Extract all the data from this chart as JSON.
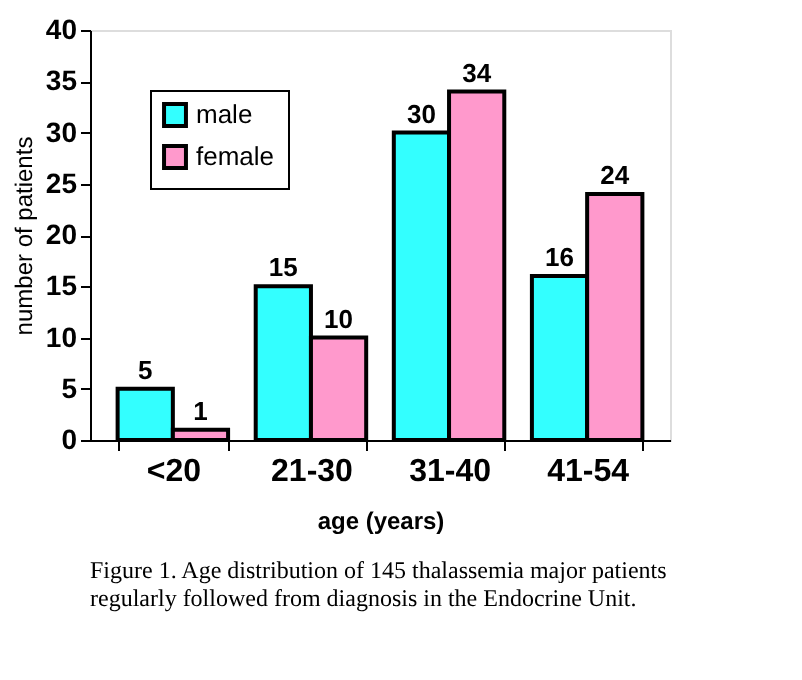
{
  "chart_data": {
    "type": "bar",
    "categories": [
      "<20",
      "21-30",
      "31-40",
      "41-54"
    ],
    "series": [
      {
        "name": "male",
        "color": "#33ffff",
        "values": [
          5,
          15,
          30,
          16
        ]
      },
      {
        "name": "female",
        "color": "#ff99cc",
        "values": [
          1,
          10,
          34,
          24
        ]
      }
    ],
    "xlabel": "age (years)",
    "ylabel": "number of patients",
    "ylim": [
      0,
      40
    ],
    "yticks": [
      0,
      5,
      10,
      15,
      20,
      25,
      30,
      35,
      40
    ],
    "data_labels": true,
    "grid": false,
    "legend": "top left",
    "annotations": [
      "Figure 1. Age distribution of 145 thalassemia major patients regularly followed from diagnosis in the Endocrine Unit."
    ]
  }
}
